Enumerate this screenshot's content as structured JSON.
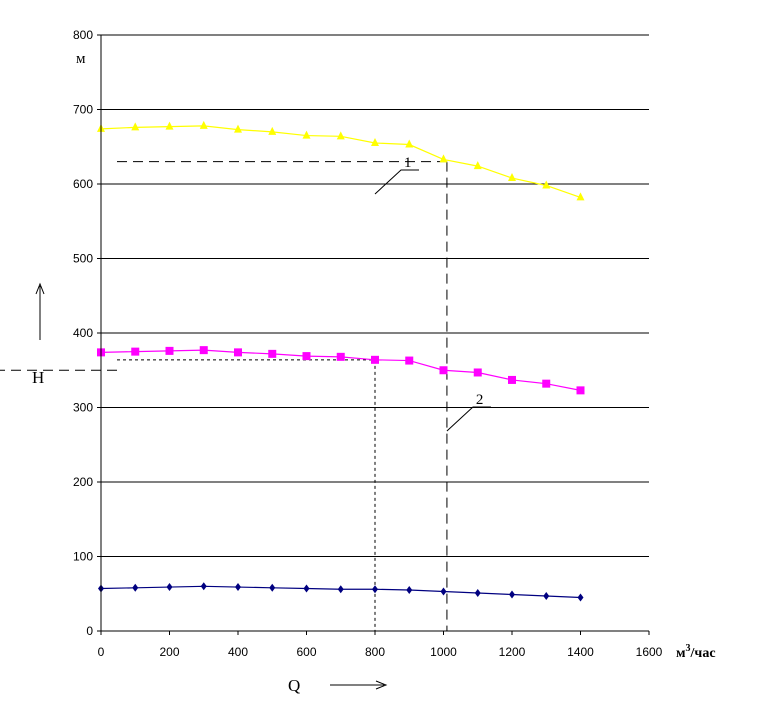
{
  "chart_data": {
    "type": "line",
    "xlabel": "Q",
    "xunit_base": "м",
    "xunit_sup": "3",
    "xunit_rest": "/час",
    "ylabel": "H",
    "yunit": "м",
    "xlim": [
      0,
      1600
    ],
    "ylim": [
      0,
      800
    ],
    "x_ticks": [
      0,
      200,
      400,
      600,
      800,
      1000,
      1200,
      1400,
      1600
    ],
    "y_ticks": [
      0,
      100,
      200,
      300,
      400,
      500,
      600,
      700,
      800
    ],
    "x_tick_labels": [
      "0",
      "200",
      "400",
      "600",
      "800",
      "1000",
      "1200",
      "1400",
      "1600"
    ],
    "y_tick_labels": [
      "0",
      "100",
      "200",
      "300",
      "400",
      "500",
      "600",
      "700",
      "800"
    ],
    "grid": "horizontal",
    "x": [
      0,
      100,
      200,
      300,
      400,
      500,
      600,
      700,
      800,
      900,
      1000,
      1100,
      1200,
      1300,
      1400
    ],
    "series": [
      {
        "color": "#ffff00",
        "marker": "triangle",
        "values": [
          674,
          676,
          677,
          678,
          673,
          670,
          665,
          664,
          655,
          653,
          633,
          624,
          608,
          598,
          582
        ]
      },
      {
        "color": "#ff00ff",
        "marker": "square",
        "values": [
          374,
          375,
          376,
          377,
          374,
          372,
          369,
          368,
          364,
          363,
          350,
          347,
          337,
          332,
          323
        ]
      },
      {
        "color": "#000080",
        "marker": "diamond",
        "values": [
          57,
          58,
          59,
          60,
          59,
          58,
          57,
          56,
          56,
          55,
          53,
          51,
          49,
          47,
          45
        ]
      }
    ],
    "operating_points": [
      {
        "label": "1",
        "x": 800,
        "y": 364,
        "style": "short-dash"
      },
      {
        "label": "2",
        "x": 1010,
        "y": 630,
        "style": "long-dash"
      }
    ],
    "extra_reference_lines": [
      {
        "y": 350,
        "x_to": 900,
        "style": "long-dash"
      }
    ]
  }
}
